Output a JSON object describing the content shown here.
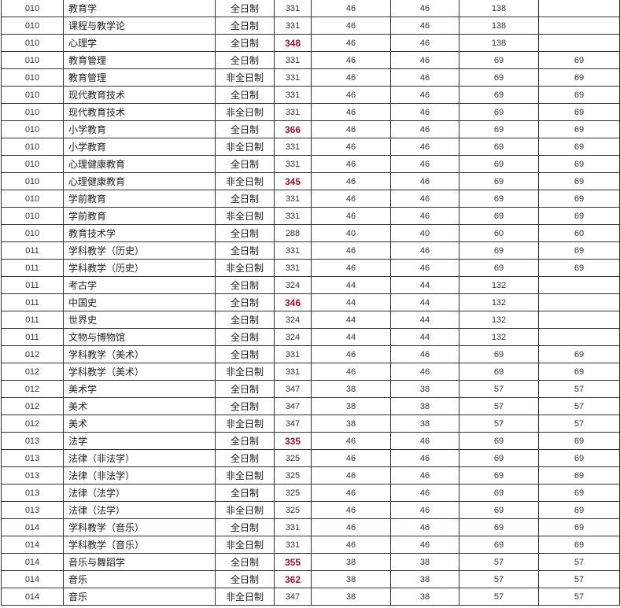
{
  "colors": {
    "highlight": "#b0102a",
    "border": "#333333"
  },
  "rows": [
    [
      "010",
      "教育学",
      "全日制",
      "331",
      "46",
      "46",
      "138",
      "",
      false
    ],
    [
      "010",
      "课程与教学论",
      "全日制",
      "331",
      "46",
      "46",
      "138",
      "",
      false
    ],
    [
      "010",
      "心理学",
      "全日制",
      "348",
      "46",
      "46",
      "138",
      "",
      true
    ],
    [
      "010",
      "教育管理",
      "全日制",
      "331",
      "46",
      "46",
      "69",
      "69",
      false
    ],
    [
      "010",
      "教育管理",
      "非全日制",
      "331",
      "46",
      "46",
      "69",
      "69",
      false
    ],
    [
      "010",
      "现代教育技术",
      "全日制",
      "331",
      "46",
      "46",
      "69",
      "69",
      false
    ],
    [
      "010",
      "现代教育技术",
      "非全日制",
      "331",
      "46",
      "46",
      "69",
      "69",
      false
    ],
    [
      "010",
      "小学教育",
      "全日制",
      "366",
      "46",
      "46",
      "69",
      "69",
      true
    ],
    [
      "010",
      "小学教育",
      "非全日制",
      "331",
      "46",
      "46",
      "69",
      "69",
      false
    ],
    [
      "010",
      "心理健康教育",
      "全日制",
      "331",
      "46",
      "46",
      "69",
      "69",
      false
    ],
    [
      "010",
      "心理健康教育",
      "非全日制",
      "345",
      "46",
      "46",
      "69",
      "69",
      true
    ],
    [
      "010",
      "学前教育",
      "全日制",
      "331",
      "46",
      "46",
      "69",
      "69",
      false
    ],
    [
      "010",
      "学前教育",
      "非全日制",
      "331",
      "46",
      "46",
      "69",
      "69",
      false
    ],
    [
      "010",
      "教育技术学",
      "全日制",
      "288",
      "40",
      "40",
      "60",
      "60",
      false
    ],
    [
      "011",
      "学科教学（历史）",
      "全日制",
      "331",
      "46",
      "46",
      "69",
      "69",
      false
    ],
    [
      "011",
      "学科教学（历史）",
      "非全日制",
      "331",
      "46",
      "46",
      "69",
      "69",
      false
    ],
    [
      "011",
      "考古学",
      "全日制",
      "324",
      "44",
      "44",
      "132",
      "",
      false
    ],
    [
      "011",
      "中国史",
      "全日制",
      "346",
      "44",
      "44",
      "132",
      "",
      true
    ],
    [
      "011",
      "世界史",
      "全日制",
      "324",
      "44",
      "44",
      "132",
      "",
      false
    ],
    [
      "011",
      "文物与博物馆",
      "全日制",
      "324",
      "44",
      "44",
      "132",
      "",
      false
    ],
    [
      "012",
      "学科教学（美术）",
      "全日制",
      "331",
      "46",
      "46",
      "69",
      "69",
      false
    ],
    [
      "012",
      "学科教学（美术）",
      "非全日制",
      "331",
      "46",
      "46",
      "69",
      "69",
      false
    ],
    [
      "012",
      "美术学",
      "全日制",
      "347",
      "38",
      "38",
      "57",
      "57",
      false
    ],
    [
      "012",
      "美术",
      "全日制",
      "347",
      "38",
      "38",
      "57",
      "57",
      false
    ],
    [
      "012",
      "美术",
      "非全日制",
      "347",
      "38",
      "38",
      "57",
      "57",
      false
    ],
    [
      "013",
      "法学",
      "全日制",
      "335",
      "46",
      "46",
      "69",
      "69",
      true
    ],
    [
      "013",
      "法律（非法学）",
      "全日制",
      "325",
      "46",
      "46",
      "69",
      "69",
      false
    ],
    [
      "013",
      "法律（非法学）",
      "非全日制",
      "325",
      "46",
      "46",
      "69",
      "69",
      false
    ],
    [
      "013",
      "法律（法学）",
      "全日制",
      "325",
      "46",
      "46",
      "69",
      "69",
      false
    ],
    [
      "013",
      "法律（法学）",
      "非全日制",
      "325",
      "46",
      "46",
      "69",
      "69",
      false
    ],
    [
      "014",
      "学科教学（音乐）",
      "全日制",
      "331",
      "46",
      "46",
      "69",
      "69",
      false
    ],
    [
      "014",
      "学科教学（音乐）",
      "非全日制",
      "331",
      "46",
      "46",
      "69",
      "69",
      false
    ],
    [
      "014",
      "音乐与舞蹈学",
      "全日制",
      "355",
      "38",
      "38",
      "57",
      "57",
      true
    ],
    [
      "014",
      "音乐",
      "全日制",
      "362",
      "38",
      "38",
      "57",
      "57",
      true
    ],
    [
      "014",
      "音乐",
      "非全日制",
      "347",
      "38",
      "38",
      "57",
      "57",
      false
    ]
  ]
}
